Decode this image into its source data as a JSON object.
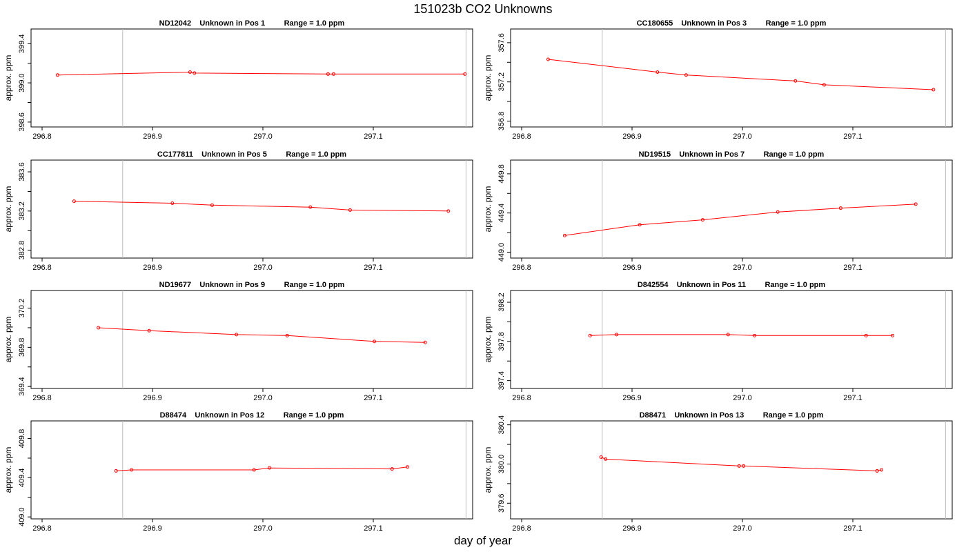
{
  "figure": {
    "title": "151023b  CO2 Unknowns",
    "xlabel": "day of year"
  },
  "chart_data": [
    {
      "type": "line",
      "title": "ND12042    Unknown in Pos 1         Range = 1.0 ppm",
      "ylabel": "approx. ppm",
      "xlim": [
        296.79,
        297.19
      ],
      "ylim": [
        398.55,
        399.55
      ],
      "xticks": [
        "296.8",
        "296.9",
        "297.0",
        "297.1"
      ],
      "yticks": [
        "398.6",
        "399.0",
        "399.4"
      ],
      "vlines": [
        296.873,
        297.184
      ],
      "grid": false,
      "series": [
        {
          "color": "#ff0000",
          "x": [
            296.814,
            296.934,
            296.938,
            297.059,
            297.064,
            297.183
          ],
          "y": [
            399.08,
            399.11,
            399.1,
            399.09,
            399.09,
            399.09
          ]
        }
      ]
    },
    {
      "type": "line",
      "title": "CC180655    Unknown in Pos 3         Range = 1.0 ppm",
      "ylabel": "approx. ppm",
      "xlim": [
        296.79,
        297.19
      ],
      "ylim": [
        356.74,
        357.74
      ],
      "xticks": [
        "296.8",
        "296.9",
        "297.0",
        "297.1"
      ],
      "yticks": [
        "356.8",
        "357.2",
        "357.6"
      ],
      "vlines": [
        296.873,
        297.184
      ],
      "grid": false,
      "series": [
        {
          "color": "#ff0000",
          "x": [
            296.824,
            296.923,
            296.949,
            297.048,
            297.074,
            297.173
          ],
          "y": [
            357.43,
            357.3,
            357.27,
            357.21,
            357.17,
            357.12
          ]
        }
      ]
    },
    {
      "type": "line",
      "title": "CC177811    Unknown in Pos 5         Range = 1.0 ppm",
      "ylabel": "approx. ppm",
      "xlim": [
        296.79,
        297.19
      ],
      "ylim": [
        382.72,
        383.72
      ],
      "xticks": [
        "296.8",
        "296.9",
        "297.0",
        "297.1"
      ],
      "yticks": [
        "382.8",
        "383.2",
        "383.6"
      ],
      "vlines": [
        296.873,
        297.184
      ],
      "grid": false,
      "series": [
        {
          "color": "#ff0000",
          "x": [
            296.829,
            296.918,
            296.954,
            297.043,
            297.079,
            297.168
          ],
          "y": [
            383.3,
            383.28,
            383.26,
            383.24,
            383.21,
            383.2
          ]
        }
      ]
    },
    {
      "type": "line",
      "title": "ND19515    Unknown in Pos 7         Range = 1.0 ppm",
      "ylabel": "approx. ppm",
      "xlim": [
        296.79,
        297.19
      ],
      "ylim": [
        448.94,
        449.94
      ],
      "xticks": [
        "296.8",
        "296.9",
        "297.0",
        "297.1"
      ],
      "yticks": [
        "449.0",
        "449.4",
        "449.8"
      ],
      "vlines": [
        296.873,
        297.184
      ],
      "grid": false,
      "series": [
        {
          "color": "#ff0000",
          "x": [
            296.839,
            296.907,
            296.964,
            297.032,
            297.089,
            297.157
          ],
          "y": [
            449.17,
            449.28,
            449.33,
            449.41,
            449.45,
            449.49
          ]
        }
      ]
    },
    {
      "type": "line",
      "title": "ND19677    Unknown in Pos 9         Range = 1.0 ppm",
      "ylabel": "approx. ppm",
      "xlim": [
        296.79,
        297.19
      ],
      "ylim": [
        369.38,
        370.38
      ],
      "xticks": [
        "296.8",
        "296.9",
        "297.0",
        "297.1"
      ],
      "yticks": [
        "369.4",
        "369.8",
        "370.2"
      ],
      "vlines": [
        296.873,
        297.184
      ],
      "grid": false,
      "series": [
        {
          "color": "#ff0000",
          "x": [
            296.851,
            296.897,
            296.976,
            297.022,
            297.101,
            297.147
          ],
          "y": [
            370.0,
            369.97,
            369.93,
            369.92,
            369.86,
            369.85
          ]
        }
      ]
    },
    {
      "type": "line",
      "title": "D842554    Unknown in Pos 11         Range = 1.0 ppm",
      "ylabel": "approx. ppm",
      "xlim": [
        296.79,
        297.19
      ],
      "ylim": [
        397.32,
        398.32
      ],
      "xticks": [
        "296.8",
        "296.9",
        "297.0",
        "297.1"
      ],
      "yticks": [
        "397.4",
        "397.8",
        "398.2"
      ],
      "vlines": [
        296.873,
        297.184
      ],
      "grid": false,
      "series": [
        {
          "color": "#ff0000",
          "x": [
            296.862,
            296.886,
            296.987,
            297.011,
            297.112,
            297.136
          ],
          "y": [
            397.86,
            397.87,
            397.87,
            397.86,
            397.86,
            397.86
          ]
        }
      ]
    },
    {
      "type": "line",
      "title": "D88474    Unknown in Pos 12         Range = 1.0 ppm",
      "ylabel": "approx. ppm",
      "xlim": [
        296.79,
        297.19
      ],
      "ylim": [
        408.98,
        409.98
      ],
      "xticks": [
        "296.8",
        "296.9",
        "297.0",
        "297.1"
      ],
      "yticks": [
        "409.0",
        "409.4",
        "409.8"
      ],
      "vlines": [
        296.873,
        297.184
      ],
      "grid": false,
      "series": [
        {
          "color": "#ff0000",
          "x": [
            296.867,
            296.881,
            296.992,
            297.006,
            297.117,
            297.131
          ],
          "y": [
            409.47,
            409.48,
            409.48,
            409.5,
            409.49,
            409.51
          ]
        }
      ]
    },
    {
      "type": "line",
      "title": "D88471    Unknown in Pos 13         Range = 1.0 ppm",
      "ylabel": "approx. ppm",
      "xlim": [
        296.79,
        297.19
      ],
      "ylim": [
        379.44,
        380.44
      ],
      "xticks": [
        "296.8",
        "296.9",
        "297.0",
        "297.1"
      ],
      "yticks": [
        "379.6",
        "380.0",
        "380.4"
      ],
      "vlines": [
        296.873,
        297.184
      ],
      "grid": false,
      "series": [
        {
          "color": "#ff0000",
          "x": [
            296.872,
            296.876,
            296.997,
            297.001,
            297.122,
            297.126
          ],
          "y": [
            380.07,
            380.05,
            379.98,
            379.98,
            379.93,
            379.94
          ]
        }
      ]
    }
  ]
}
